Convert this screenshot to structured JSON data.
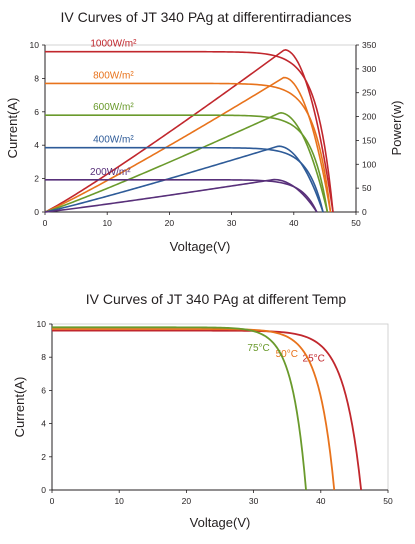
{
  "chart_data": [
    {
      "type": "line",
      "title": "IV Curves of JT 340 PAg at differentirradiances",
      "xlabel": "Voltage(V)",
      "ylabel": "Current(A)",
      "y2label": "Power(w)",
      "xlim": [
        0,
        50
      ],
      "ylim": [
        0,
        10
      ],
      "y2lim": [
        0,
        350
      ],
      "xticks": [
        "0",
        "10",
        "20",
        "30",
        "40",
        "50"
      ],
      "yticks": [
        "0",
        "2",
        "4",
        "6",
        "8",
        "10"
      ],
      "y2ticks": [
        "0",
        "50",
        "100",
        "150",
        "200",
        "250",
        "300",
        "350"
      ],
      "grid": false,
      "series": [
        {
          "name": "1000W/m²",
          "color": "#c1272d",
          "isc": 9.6,
          "voc": 46.3,
          "vmp": 38.5,
          "pmax": 340
        },
        {
          "name": "800W/m²",
          "color": "#e8731c",
          "isc": 7.7,
          "voc": 45.9,
          "vmp": 38.4,
          "pmax": 282
        },
        {
          "name": "600W/m²",
          "color": "#6a9a2c",
          "isc": 5.8,
          "voc": 45.4,
          "vmp": 37.8,
          "pmax": 208
        },
        {
          "name": "400W/m²",
          "color": "#2e5b98",
          "isc": 3.85,
          "voc": 44.7,
          "vmp": 37.5,
          "pmax": 138
        },
        {
          "name": "200W/m²",
          "color": "#58307a",
          "isc": 1.93,
          "voc": 43.7,
          "vmp": 36.8,
          "pmax": 68
        }
      ]
    },
    {
      "type": "line",
      "title": "IV Curves of JT 340 PAg at different Temp",
      "xlabel": "Voltage(V)",
      "ylabel": "Current(A)",
      "xlim": [
        0,
        50
      ],
      "ylim": [
        0,
        10
      ],
      "xticks": [
        "0",
        "10",
        "20",
        "30",
        "40",
        "50"
      ],
      "yticks": [
        "0",
        "2",
        "4",
        "6",
        "8",
        "10"
      ],
      "grid": false,
      "series": [
        {
          "name": "25°C",
          "color": "#c1272d",
          "isc": 9.6,
          "voc": 46.0
        },
        {
          "name": "50°C",
          "color": "#e8731c",
          "isc": 9.7,
          "voc": 42.0
        },
        {
          "name": "75°C",
          "color": "#6a9a2c",
          "isc": 9.8,
          "voc": 37.8
        }
      ]
    }
  ]
}
